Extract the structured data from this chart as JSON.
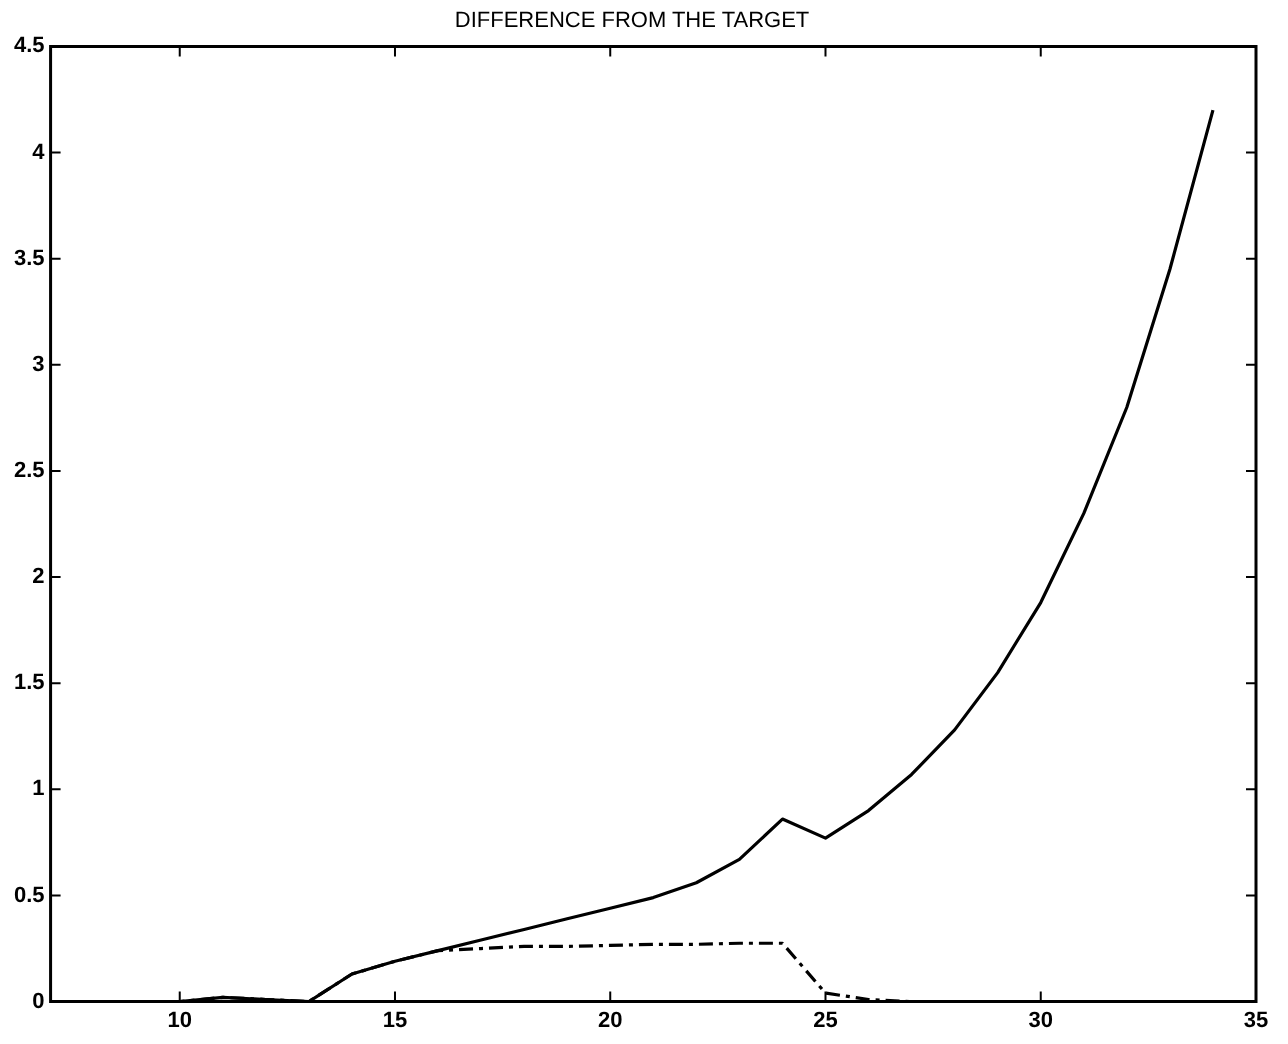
{
  "chart_data": {
    "type": "line",
    "title": "DIFFERENCE FROM THE TARGET",
    "x": [
      7,
      8,
      9,
      10,
      11,
      12,
      13,
      14,
      15,
      16,
      17,
      18,
      19,
      20,
      21,
      22,
      23,
      24,
      25,
      26,
      27,
      28,
      29,
      30,
      31,
      32,
      33,
      34
    ],
    "series": [
      {
        "color": "#000000",
        "line_style": "solid",
        "values": [
          0,
          0,
          0,
          0,
          0.02,
          0.01,
          0,
          0.13,
          0.19,
          0.24,
          0.29,
          0.34,
          0.39,
          0.44,
          0.49,
          0.56,
          0.67,
          0.86,
          0.77,
          0.9,
          1.07,
          1.28,
          1.55,
          1.88,
          2.3,
          2.8,
          3.45,
          4.2
        ]
      },
      {
        "color": "#000000",
        "line_style": "dashed",
        "values": [
          0,
          0,
          0,
          0,
          0.02,
          0.01,
          0,
          0.13,
          0.19,
          0.24,
          0.25,
          0.26,
          0.26,
          0.265,
          0.27,
          0.27,
          0.275,
          0.275,
          0.04,
          0.01,
          0,
          0,
          0,
          0,
          0,
          0,
          0,
          0
        ]
      }
    ],
    "xlim": [
      7,
      35
    ],
    "xticks": [
      10,
      15,
      20,
      25,
      30,
      35
    ],
    "ylim": [
      0,
      4.5
    ],
    "yticks": [
      0,
      0.5,
      1,
      1.5,
      2,
      2.5,
      3,
      3.5,
      4,
      4.5
    ],
    "grid": false,
    "legend": false,
    "marker": "none"
  }
}
